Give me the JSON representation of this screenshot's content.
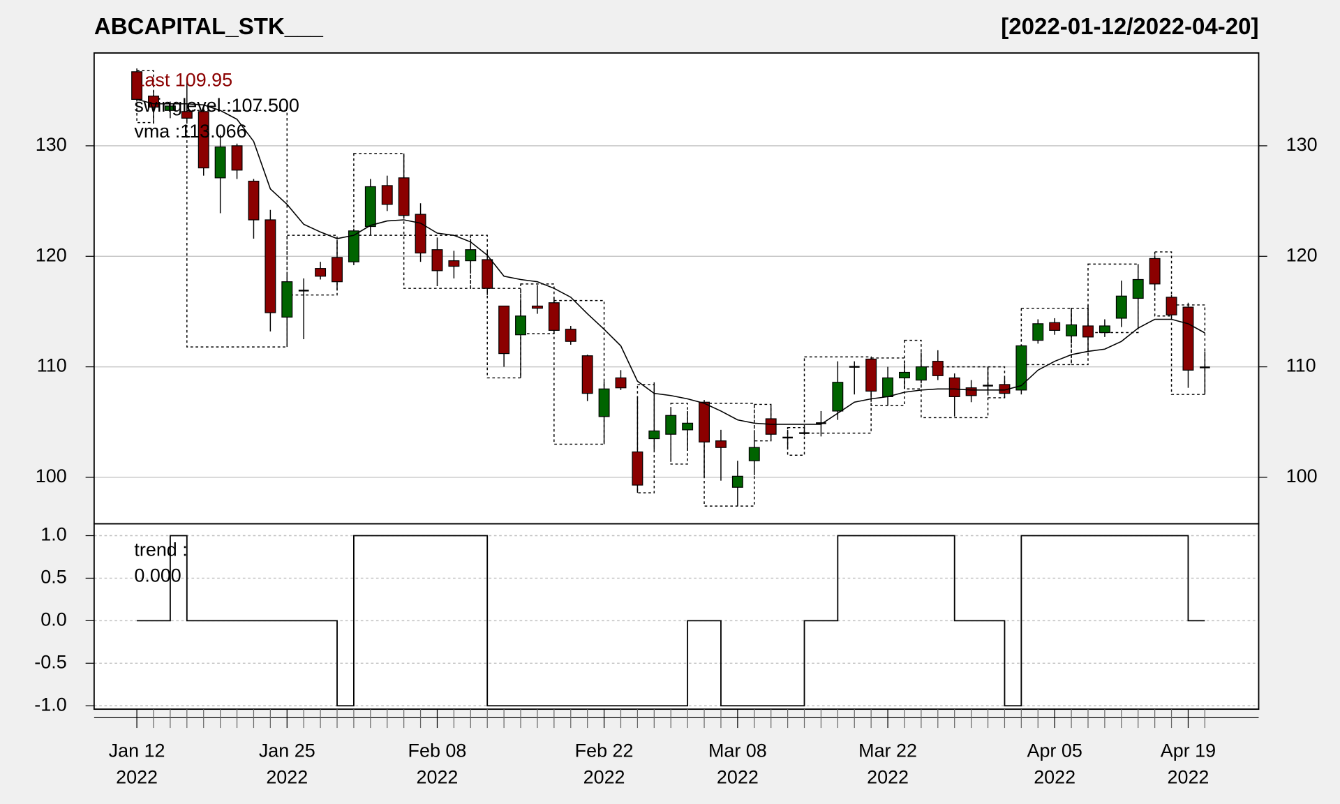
{
  "chart_data": [
    {
      "type": "candlestick",
      "title": "ABCAPITAL_STK___",
      "subtitle": "[2022-01-12/2022-04-20]",
      "categories": [
        "Jan 12",
        null,
        null,
        null,
        null,
        null,
        null,
        null,
        null,
        "Jan 25",
        null,
        null,
        null,
        null,
        null,
        null,
        null,
        null,
        "Feb 08",
        null,
        null,
        null,
        null,
        null,
        null,
        null,
        null,
        null,
        "Feb 22",
        null,
        null,
        null,
        null,
        null,
        null,
        null,
        "Mar 08",
        null,
        null,
        null,
        null,
        null,
        null,
        null,
        null,
        "Mar 22",
        null,
        null,
        null,
        null,
        null,
        null,
        null,
        null,
        null,
        "Apr 05",
        null,
        null,
        null,
        null,
        null,
        null,
        null,
        "Apr 19",
        null
      ],
      "category_years": [
        "2022",
        null,
        null,
        null,
        null,
        null,
        null,
        null,
        null,
        "2022",
        null,
        null,
        null,
        null,
        null,
        null,
        null,
        null,
        "2022",
        null,
        null,
        null,
        null,
        null,
        null,
        null,
        null,
        null,
        "2022",
        null,
        null,
        null,
        null,
        null,
        null,
        null,
        "2022",
        null,
        null,
        null,
        null,
        null,
        null,
        null,
        null,
        "2022",
        null,
        null,
        null,
        null,
        null,
        null,
        null,
        null,
        null,
        "2022",
        null,
        null,
        null,
        null,
        null,
        null,
        null,
        "2022",
        null
      ],
      "open": [
        136.7,
        134.5,
        133.2,
        133.1,
        133.1,
        127.1,
        130,
        126.8,
        123.3,
        114.5,
        116.9,
        118.9,
        119.9,
        119.5,
        122.7,
        126.4,
        127.1,
        123.8,
        120.6,
        119.6,
        119.6,
        119.7,
        115.5,
        112.9,
        115.5,
        115.8,
        113.4,
        111.0,
        105.5,
        109,
        102.3,
        103.5,
        103.9,
        104.3,
        106.8,
        103.3,
        99.1,
        101.5,
        105.3,
        103.6,
        104,
        104.9,
        106,
        110,
        110.7,
        107.3,
        109,
        108.8,
        110.5,
        109,
        108.1,
        108.3,
        108.4,
        107.9,
        112.4,
        114,
        112.8,
        113.7,
        113.1,
        114.4,
        116.2,
        119.8,
        116.3,
        115.4,
        109.95
      ],
      "high": [
        137,
        135,
        134,
        136,
        133.5,
        131,
        130.2,
        127,
        124.2,
        118.3,
        118,
        119.5,
        121.5,
        122.5,
        127,
        127.3,
        129.3,
        124.8,
        121.7,
        120.5,
        121.5,
        120.6,
        115.5,
        116,
        117.4,
        116.3,
        113.7,
        111.1,
        108.7,
        109.7,
        107.3,
        108.6,
        106.2,
        106,
        107,
        104.3,
        101.5,
        104.1,
        106.5,
        104.3,
        104.5,
        106,
        110.5,
        110.5,
        110.8,
        110,
        110.3,
        111.3,
        111.5,
        109.4,
        108.8,
        110,
        109,
        112,
        114.3,
        114.4,
        115,
        115.6,
        114.3,
        117.8,
        119.3,
        120.1,
        116.5,
        115.8,
        111.4
      ],
      "low": [
        134,
        132,
        132.5,
        132,
        127.3,
        123.9,
        127,
        121.6,
        113.2,
        111.8,
        112.5,
        117.9,
        116.9,
        119.2,
        121.9,
        124.1,
        123.5,
        119.5,
        117.3,
        118,
        118.5,
        116.5,
        110,
        109,
        114.8,
        113,
        112,
        106.9,
        103,
        107.9,
        98.6,
        102.5,
        101.4,
        102.4,
        100,
        99.7,
        97.4,
        100.2,
        103.3,
        102.6,
        103.8,
        103.7,
        105.2,
        107.5,
        107.2,
        106.5,
        108,
        108.5,
        108.8,
        105.5,
        106.8,
        107.6,
        107.2,
        107.5,
        112.1,
        112.9,
        112.1,
        111.3,
        112.7,
        113.6,
        113.6,
        116.9,
        114.4,
        108.1,
        107.5
      ],
      "close": [
        134.2,
        133.5,
        133.6,
        132.5,
        128,
        129.9,
        127.8,
        123.3,
        114.9,
        117.7,
        116.9,
        118.2,
        117.7,
        122.3,
        126.3,
        124.7,
        123.7,
        120.3,
        118.7,
        119.1,
        120.6,
        117.1,
        111.2,
        114.6,
        115.3,
        113.3,
        112.3,
        107.6,
        108,
        108.1,
        99.3,
        104.2,
        105.6,
        104.9,
        103.2,
        102.7,
        100.1,
        102.7,
        103.9,
        103.6,
        104,
        104.9,
        108.6,
        110,
        107.8,
        109,
        109.5,
        110,
        109.2,
        107.3,
        107.4,
        108.3,
        107.6,
        111.9,
        113.9,
        113.3,
        113.8,
        112.7,
        113.7,
        116.4,
        117.9,
        117.5,
        114.7,
        109.7,
        109.95
      ],
      "up_color": "#006400",
      "down_color": "#8b0000",
      "vma": {
        "color": "#000000",
        "values": [
          134.2,
          133.8,
          133.8,
          133.8,
          133.7,
          133.2,
          132.4,
          130.4,
          126.1,
          124.7,
          122.9,
          122.2,
          121.6,
          121.9,
          122.8,
          123.2,
          123.3,
          123.0,
          122.1,
          121.9,
          121.3,
          120.1,
          118.2,
          117.9,
          117.7,
          117.1,
          116.3,
          114.8,
          113.4,
          111.9,
          108.7,
          107.6,
          107.4,
          107.1,
          106.7,
          106.0,
          105.2,
          104.9,
          104.8,
          104.8,
          104.8,
          104.8,
          105.8,
          106.8,
          107.1,
          107.3,
          107.7,
          107.9,
          108.0,
          108.0,
          107.9,
          107.9,
          107.9,
          108.3,
          109.7,
          110.5,
          111.1,
          111.4,
          111.6,
          112.3,
          113.5,
          114.3,
          114.3,
          113.9,
          113.07
        ]
      },
      "swing_boxes": [
        {
          "start": 0,
          "end": 1,
          "high": 136.8,
          "low": 132.1
        },
        {
          "start": 3,
          "end": 9,
          "high": 133.2,
          "low": 111.8
        },
        {
          "start": 9,
          "end": 12,
          "high": 121.9,
          "low": 116.5
        },
        {
          "start": 13,
          "end": 16,
          "high": 129.3,
          "low": 121.9
        },
        {
          "start": 16,
          "end": 20,
          "high": 121.9,
          "low": 117.1
        },
        {
          "start": 20,
          "end": 21,
          "high": 121.9,
          "low": 117.1
        },
        {
          "start": 21,
          "end": 23,
          "high": 117.1,
          "low": 109
        },
        {
          "start": 23,
          "end": 25,
          "high": 117.5,
          "low": 113
        },
        {
          "start": 25,
          "end": 28,
          "high": 116,
          "low": 103
        },
        {
          "start": 30,
          "end": 31,
          "high": 108.4,
          "low": 98.6
        },
        {
          "start": 32,
          "end": 33,
          "high": 106.7,
          "low": 101.2
        },
        {
          "start": 34,
          "end": 37,
          "high": 106.7,
          "low": 97.4
        },
        {
          "start": 37,
          "end": 38,
          "high": 106.6,
          "low": 103.3
        },
        {
          "start": 39,
          "end": 40,
          "high": 104.5,
          "low": 102
        },
        {
          "start": 40,
          "end": 44,
          "high": 110.9,
          "low": 104
        },
        {
          "start": 44,
          "end": 46,
          "high": 110.8,
          "low": 106.5
        },
        {
          "start": 46,
          "end": 47,
          "high": 112.4,
          "low": 108
        },
        {
          "start": 47,
          "end": 51,
          "high": 110,
          "low": 105.4
        },
        {
          "start": 51,
          "end": 52,
          "high": 110,
          "low": 107.2
        },
        {
          "start": 53,
          "end": 56,
          "high": 115.3,
          "low": 110.2
        },
        {
          "start": 56,
          "end": 57,
          "high": 115.3,
          "low": 110.2
        },
        {
          "start": 57,
          "end": 60,
          "high": 119.3,
          "low": 113.1
        },
        {
          "start": 61,
          "end": 62,
          "high": 120.4,
          "low": 114.6
        },
        {
          "start": 62,
          "end": 64,
          "high": 115.6,
          "low": 107.5
        }
      ],
      "annotations": [
        "Last 109.95",
        "swinglevel :107.500",
        "vma :113.066"
      ],
      "annotation_colors": [
        "#8b0000",
        "#000000",
        "#000000"
      ],
      "ylim": [
        95.8,
        138.4
      ],
      "yticks": [
        100,
        110,
        120,
        130
      ],
      "grid": true
    },
    {
      "type": "step",
      "annotations": [
        "trend :",
        "0.000"
      ],
      "color": "#000000",
      "values": [
        0,
        0,
        1,
        0,
        0,
        0,
        0,
        0,
        0,
        0,
        0,
        0,
        -1,
        1,
        1,
        1,
        1,
        1,
        1,
        1,
        1,
        -1,
        -1,
        -1,
        -1,
        -1,
        -1,
        -1,
        -1,
        -1,
        -1,
        -1,
        -1,
        0,
        0,
        -1,
        -1,
        -1,
        -1,
        -1,
        0,
        0,
        1,
        1,
        1,
        1,
        1,
        1,
        1,
        0,
        0,
        0,
        -1,
        1,
        1,
        1,
        1,
        1,
        1,
        1,
        1,
        1,
        1,
        0,
        0
      ],
      "ylim": [
        -1.04,
        1.14
      ],
      "yticks": [
        {
          "value": 1,
          "label": "1.0"
        },
        {
          "value": 0.5,
          "label": "0.5"
        },
        {
          "value": 0,
          "label": "0.0"
        },
        {
          "value": -0.5,
          "label": "-0.5"
        },
        {
          "value": -1,
          "label": "-1.0"
        }
      ],
      "grid": true
    }
  ]
}
